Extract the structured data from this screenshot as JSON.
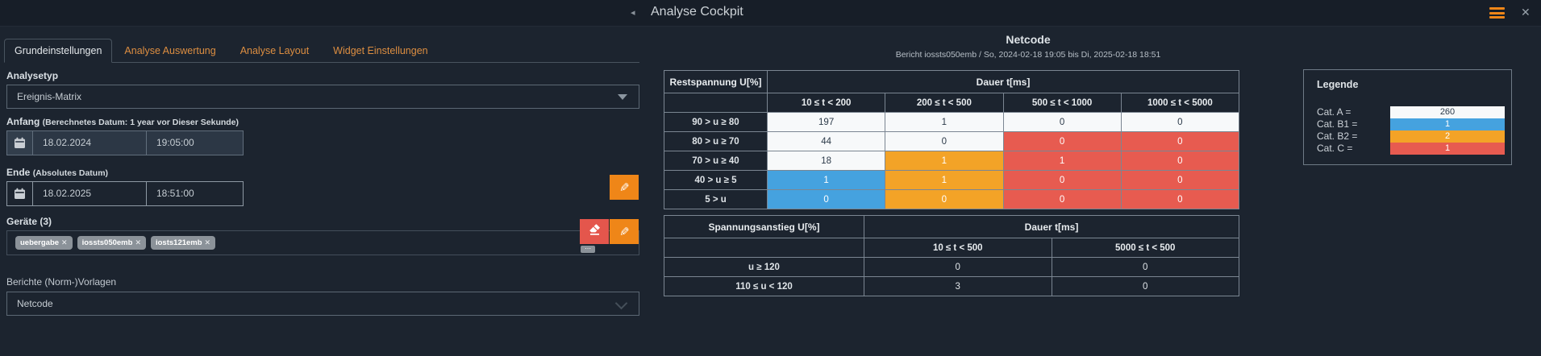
{
  "header": {
    "title": "Analyse Cockpit"
  },
  "icons": {
    "back": "◂",
    "close": "✕",
    "pencil": "✎",
    "tag_close": "✕",
    "overflow": "⋯"
  },
  "tabs": [
    {
      "label": "Grundeinstellungen",
      "active": true
    },
    {
      "label": "Analyse Auswertung",
      "active": false
    },
    {
      "label": "Analyse Layout",
      "active": false
    },
    {
      "label": "Widget Einstellungen",
      "active": false
    }
  ],
  "form": {
    "analysetyp": {
      "label": "Analysetyp",
      "value": "Ereignis-Matrix"
    },
    "anfang": {
      "label": "Anfang",
      "hint": "(Berechnetes Datum: 1 year vor Dieser Sekunde)",
      "date": "18.02.2024",
      "time": "19:05:00"
    },
    "ende": {
      "label": "Ende",
      "hint": "(Absolutes Datum)",
      "date": "18.02.2025",
      "time": "18:51:00"
    },
    "geraete": {
      "label": "Geräte (3)",
      "tags": [
        "uebergabe",
        "iossts050emb",
        "iosts121emb"
      ]
    },
    "berichte": {
      "label": "Berichte (Norm-)Vorlagen",
      "value": "Netcode"
    }
  },
  "report": {
    "title": "Netcode",
    "subtitle": "Bericht iossts050emb / So, 2024-02-18 19:05 bis Di, 2025-02-18 18:51"
  },
  "tables": [
    {
      "corner": "Restspannung U[%]",
      "group": "Dauer t[ms]",
      "columns": [
        "10 ≤ t < 200",
        "200 ≤ t < 500",
        "500 ≤ t < 1000",
        "1000 ≤ t < 5000"
      ],
      "rows": [
        {
          "label": "90 > u ≥ 80",
          "values": [
            "197",
            "1",
            "0",
            "0"
          ],
          "cats": [
            "A",
            "A",
            "A",
            "A"
          ]
        },
        {
          "label": "80 > u ≥ 70",
          "values": [
            "44",
            "0",
            "0",
            "0"
          ],
          "cats": [
            "A",
            "A",
            "C",
            "C"
          ]
        },
        {
          "label": "70 > u ≥ 40",
          "values": [
            "18",
            "1",
            "1",
            "0"
          ],
          "cats": [
            "A",
            "B2",
            "C",
            "C"
          ]
        },
        {
          "label": "40 > u ≥ 5",
          "values": [
            "1",
            "1",
            "0",
            "0"
          ],
          "cats": [
            "B1",
            "B2",
            "C",
            "C"
          ]
        },
        {
          "label": "5 > u",
          "values": [
            "0",
            "0",
            "0",
            "0"
          ],
          "cats": [
            "B1",
            "B2",
            "C",
            "C"
          ]
        }
      ]
    },
    {
      "corner": "Spannungsanstieg U[%]",
      "group": "Dauer t[ms]",
      "columns": [
        "10 ≤ t < 500",
        "5000 ≤ t < 500"
      ],
      "rows": [
        {
          "label": "u ≥ 120",
          "values": [
            "0",
            "0"
          ],
          "cats": [
            "plain",
            "plain"
          ]
        },
        {
          "label": "110 ≤ u < 120",
          "values": [
            "3",
            "0"
          ],
          "cats": [
            "plain",
            "plain"
          ]
        }
      ]
    }
  ],
  "legend": {
    "title": "Legende",
    "items": [
      {
        "label": "Cat. A =",
        "value": "260",
        "cat": "A"
      },
      {
        "label": "Cat. B1 =",
        "value": "1",
        "cat": "B1"
      },
      {
        "label": "Cat. B2 =",
        "value": "2",
        "cat": "B2"
      },
      {
        "label": "Cat. C =",
        "value": "1",
        "cat": "C"
      }
    ]
  },
  "colors": {
    "cat": {
      "A": "#f7f9fa",
      "B1": "#45a2df",
      "B2": "#f3a327",
      "C": "#e75b50"
    },
    "cat_text": {
      "A": "#2c3a49",
      "B1": "#ffffff",
      "B2": "#ffffff",
      "C": "#ffffff"
    },
    "accent_orange": "#ef8618",
    "danger_red": "#e4564c"
  }
}
